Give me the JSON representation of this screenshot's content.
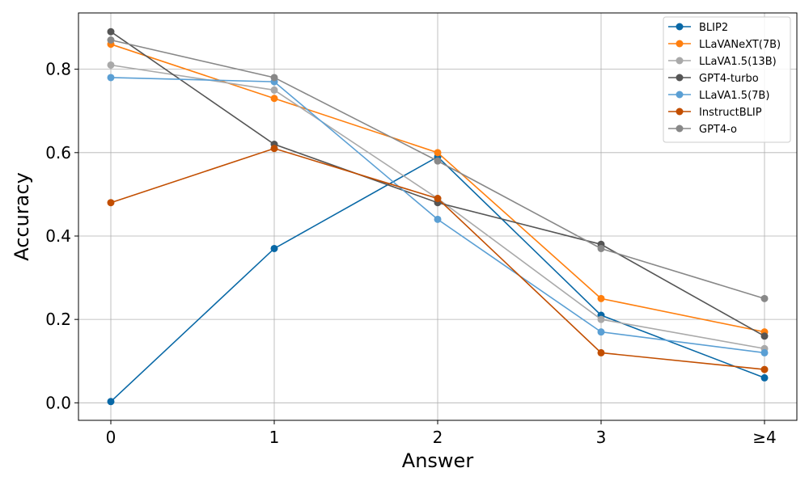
{
  "chart_data": {
    "type": "line",
    "title": "",
    "xlabel": "Answer",
    "ylabel": "Accuracy",
    "categories": [
      "0",
      "1",
      "2",
      "3",
      "≥4"
    ],
    "ylim": [
      -0.042,
      0.935
    ],
    "yticks": [
      0.0,
      0.2,
      0.4,
      0.6,
      0.8
    ],
    "ytick_labels": [
      "0.0",
      "0.2",
      "0.4",
      "0.6",
      "0.8"
    ],
    "grid": true,
    "legend_position": "top-right",
    "series": [
      {
        "name": "BLIP2",
        "color": "#0868a6",
        "values": [
          0.003,
          0.37,
          0.59,
          0.21,
          0.06
        ]
      },
      {
        "name": "LLaVANeXT(7B)",
        "color": "#ff7f0e",
        "values": [
          0.86,
          0.73,
          0.6,
          0.25,
          0.17
        ]
      },
      {
        "name": "LLaVA1.5(13B)",
        "color": "#a9a9a9",
        "values": [
          0.81,
          0.75,
          0.49,
          0.2,
          0.13
        ]
      },
      {
        "name": "GPT4-turbo",
        "color": "#555555",
        "values": [
          0.89,
          0.62,
          0.48,
          0.38,
          0.16
        ]
      },
      {
        "name": "LLaVA1.5(7B)",
        "color": "#5a9fd4",
        "values": [
          0.78,
          0.77,
          0.44,
          0.17,
          0.12
        ]
      },
      {
        "name": "InstructBLIP",
        "color": "#c24e00",
        "values": [
          0.48,
          0.61,
          0.49,
          0.12,
          0.08
        ]
      },
      {
        "name": "GPT4-o",
        "color": "#888888",
        "values": [
          0.87,
          0.78,
          0.58,
          0.37,
          0.25
        ]
      }
    ]
  }
}
